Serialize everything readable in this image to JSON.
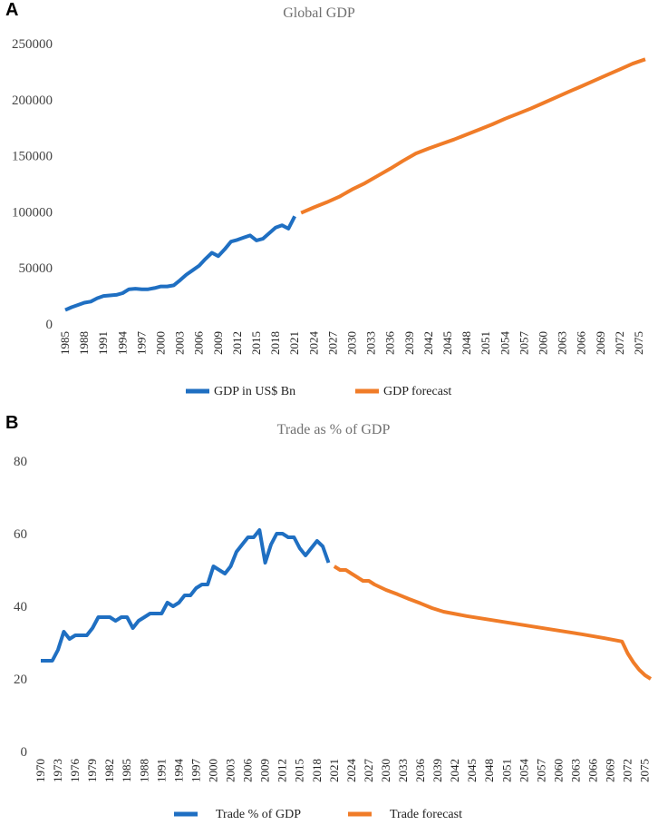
{
  "panels": {
    "a": "A",
    "b": "B"
  },
  "colors": {
    "actual": "#1f6fc2",
    "forecast": "#f07c28"
  },
  "chart_data": [
    {
      "type": "line",
      "title": "Global GDP",
      "ylim": [
        0,
        250000
      ],
      "yticks": [
        0,
        50000,
        100000,
        150000,
        200000,
        250000
      ],
      "ytick_labels": [
        "0",
        "50000",
        "100000",
        "150000",
        "200000",
        "250000"
      ],
      "xlim": [
        1985,
        2076
      ],
      "xtick_years": [
        1985,
        1988,
        1991,
        1994,
        1997,
        2000,
        2003,
        2006,
        2009,
        2012,
        2015,
        2018,
        2021,
        2024,
        2027,
        2030,
        2033,
        2036,
        2039,
        2042,
        2045,
        2048,
        2051,
        2054,
        2057,
        2060,
        2063,
        2066,
        2069,
        2072,
        2075
      ],
      "xtick_labels": [
        "1985",
        "1988",
        "1991",
        "1994",
        "1997",
        "2000",
        "2003",
        "2006",
        "2009",
        "2012",
        "2015",
        "2018",
        "2021",
        "2024",
        "2027",
        "2030",
        "2033",
        "2036",
        "2039",
        "2042",
        "2045",
        "2048",
        "2051",
        "2054",
        "2057",
        "2060",
        "2063",
        "2066",
        "2069",
        "2072",
        "2075"
      ],
      "series": [
        {
          "name": "GDP in US$ Bn",
          "x": [
            1985,
            1986,
            1987,
            1988,
            1989,
            1990,
            1991,
            1992,
            1993,
            1994,
            1995,
            1996,
            1997,
            1998,
            1999,
            2000,
            2001,
            2002,
            2003,
            2004,
            2005,
            2006,
            2007,
            2008,
            2009,
            2010,
            2011,
            2012,
            2013,
            2014,
            2015,
            2016,
            2017,
            2018,
            2019,
            2020,
            2021
          ],
          "values": [
            12500,
            15000,
            17000,
            19000,
            20000,
            23000,
            25000,
            25500,
            26000,
            27500,
            31000,
            31500,
            31000,
            31000,
            32000,
            33500,
            33500,
            34500,
            39000,
            44000,
            48000,
            52000,
            58000,
            63500,
            60500,
            66500,
            73500,
            75000,
            77000,
            79000,
            74500,
            76000,
            81000,
            86000,
            88000,
            85000,
            96000
          ]
        },
        {
          "name": "GDP forecast",
          "x": [
            2022,
            2024,
            2026,
            2028,
            2030,
            2032,
            2034,
            2036,
            2038,
            2040,
            2042,
            2044,
            2046,
            2048,
            2050,
            2052,
            2054,
            2056,
            2058,
            2060,
            2062,
            2064,
            2066,
            2068,
            2070,
            2072,
            2074,
            2076
          ],
          "values": [
            99000,
            104000,
            108500,
            113500,
            120000,
            125500,
            132000,
            138500,
            145500,
            152000,
            156500,
            160500,
            164500,
            169000,
            173500,
            178000,
            183000,
            187500,
            192000,
            197000,
            202000,
            207000,
            212000,
            217000,
            222000,
            227000,
            232000,
            236000
          ]
        }
      ],
      "legend": [
        "GDP in US$ Bn",
        "GDP forecast"
      ]
    },
    {
      "type": "line",
      "title": "Trade as % of GDP",
      "ylim": [
        0,
        80
      ],
      "yticks": [
        0,
        20,
        40,
        60,
        80
      ],
      "ytick_labels": [
        "0",
        "20",
        "40",
        "60",
        "80"
      ],
      "xlim": [
        1970,
        2076
      ],
      "xtick_years": [
        1970,
        1973,
        1976,
        1979,
        1982,
        1985,
        1988,
        1991,
        1994,
        1997,
        2000,
        2003,
        2006,
        2009,
        2012,
        2015,
        2018,
        2021,
        2024,
        2027,
        2030,
        2033,
        2036,
        2039,
        2042,
        2045,
        2048,
        2051,
        2054,
        2057,
        2060,
        2063,
        2066,
        2069,
        2072,
        2075
      ],
      "xtick_labels": [
        "1970",
        "1973",
        "1976",
        "1979",
        "1982",
        "1985",
        "1988",
        "1991",
        "1994",
        "1997",
        "2000",
        "2003",
        "2006",
        "2009",
        "2012",
        "2015",
        "2018",
        "2021",
        "2024",
        "2027",
        "2030",
        "2033",
        "2036",
        "2039",
        "2042",
        "2045",
        "2048",
        "2051",
        "2054",
        "2057",
        "2060",
        "2063",
        "2066",
        "2069",
        "2072",
        "2075"
      ],
      "series": [
        {
          "name": "Trade % of GDP",
          "x": [
            1970,
            1971,
            1972,
            1973,
            1974,
            1975,
            1976,
            1977,
            1978,
            1979,
            1980,
            1981,
            1982,
            1983,
            1984,
            1985,
            1986,
            1987,
            1988,
            1989,
            1990,
            1991,
            1992,
            1993,
            1994,
            1995,
            1996,
            1997,
            1998,
            1999,
            2000,
            2001,
            2002,
            2003,
            2004,
            2005,
            2006,
            2007,
            2008,
            2009,
            2010,
            2011,
            2012,
            2013,
            2014,
            2015,
            2016,
            2017,
            2018,
            2019,
            2020
          ],
          "values": [
            25,
            25,
            25,
            28,
            33,
            31,
            32,
            32,
            32,
            34,
            37,
            37,
            37,
            36,
            37,
            37,
            34,
            36,
            37,
            38,
            38,
            38,
            41,
            40,
            41,
            43,
            43,
            45,
            46,
            46,
            51,
            50,
            49,
            51,
            55,
            57,
            59,
            59,
            61,
            52,
            57,
            60,
            60,
            59,
            59,
            56,
            54,
            56,
            58,
            56.5,
            52
          ]
        },
        {
          "name": "Trade forecast",
          "x": [
            2021,
            2022,
            2023,
            2024,
            2025,
            2026,
            2027,
            2028,
            2030,
            2032,
            2034,
            2036,
            2038,
            2040,
            2044,
            2048,
            2052,
            2056,
            2060,
            2064,
            2068,
            2071,
            2072,
            2073,
            2074,
            2075,
            2076
          ],
          "values": [
            51,
            50,
            50,
            49,
            48,
            47,
            47,
            46,
            44.5,
            43.3,
            42,
            40.8,
            39.5,
            38.5,
            37.3,
            36.3,
            35.3,
            34.3,
            33.3,
            32.3,
            31.2,
            30.3,
            27,
            24.5,
            22.5,
            21,
            20
          ]
        }
      ],
      "legend": [
        "Trade % of GDP",
        "Trade forecast"
      ]
    }
  ]
}
